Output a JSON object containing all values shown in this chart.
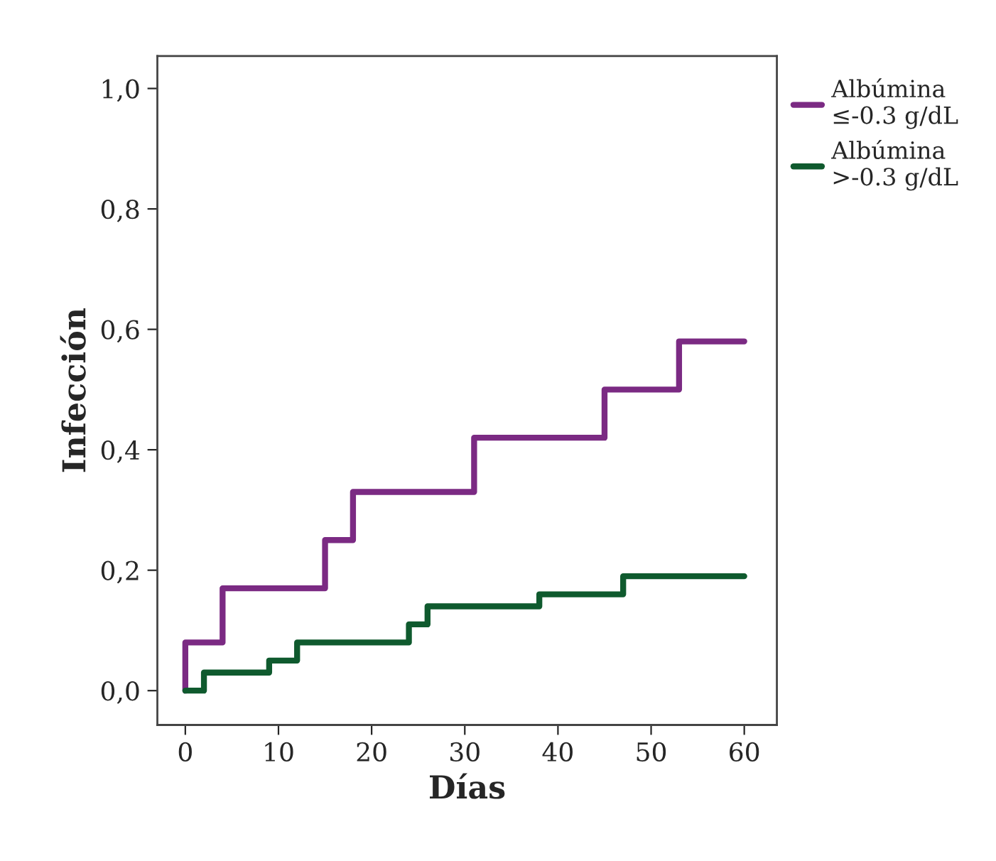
{
  "chart_data": {
    "type": "step",
    "xlabel": "Días",
    "ylabel": "Infección",
    "series": [
      {
        "name": "Albúmina\n≤-0.3 g/dL",
        "color": "#7b2a83",
        "x": [
          0,
          0,
          4,
          15,
          18,
          31,
          45,
          53,
          60
        ],
        "values": [
          0,
          0.08,
          0.17,
          0.25,
          0.33,
          0.42,
          0.5,
          0.58,
          0.58
        ]
      },
      {
        "name": "Albúmina\n>-0.3 g/dL",
        "color": "#0f5a2e",
        "x": [
          0,
          2,
          9,
          12,
          24,
          26,
          38,
          47,
          60
        ],
        "values": [
          0,
          0.03,
          0.05,
          0.08,
          0.11,
          0.14,
          0.16,
          0.19,
          0.19
        ]
      }
    ],
    "xlim": [
      -3,
      63.5
    ],
    "ylim": [
      -0.057,
      1.054
    ],
    "xticks": [
      0,
      10,
      20,
      30,
      40,
      50,
      60
    ],
    "yticks": [
      {
        "value": 0,
        "label": "0,0"
      },
      {
        "value": 0.2,
        "label": "0,2"
      },
      {
        "value": 0.4,
        "label": "0,4"
      },
      {
        "value": 0.6,
        "label": "0,6"
      },
      {
        "value": 0.8,
        "label": "0,8"
      },
      {
        "value": 1.0,
        "label": "1,0"
      }
    ],
    "legend": "top right",
    "grid": false,
    "line_style": "solid"
  }
}
